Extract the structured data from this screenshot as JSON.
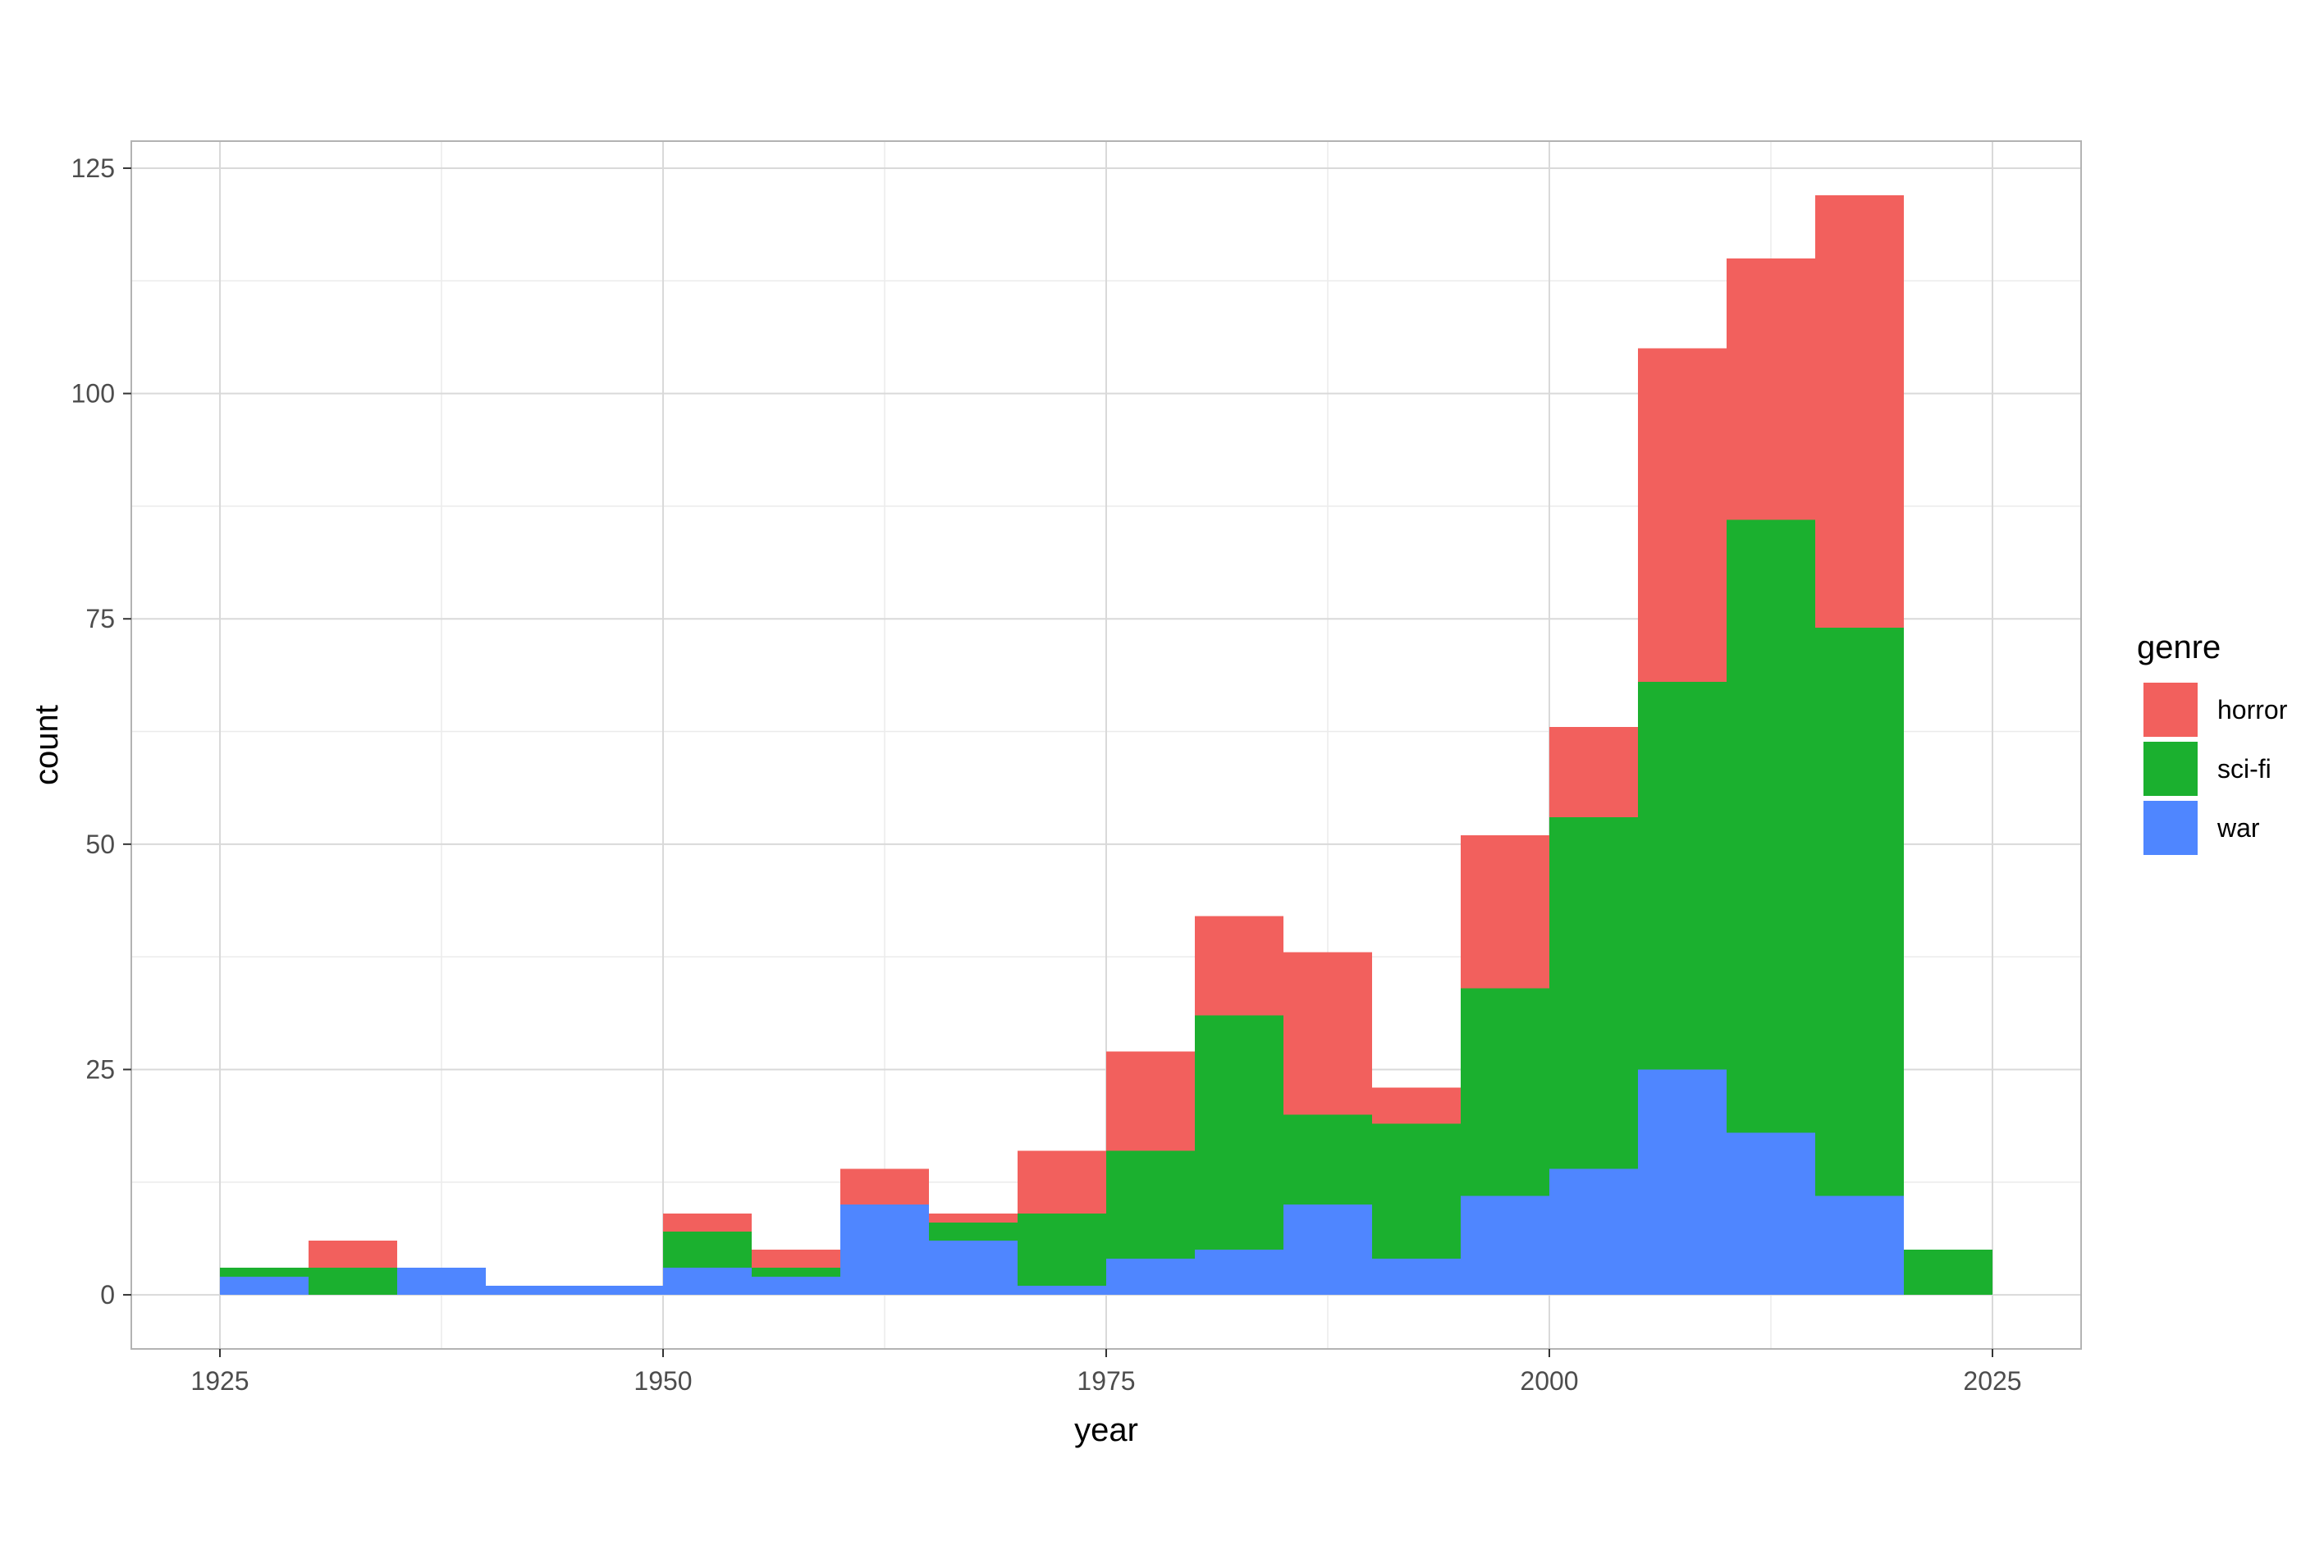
{
  "chart_data": {
    "type": "bar",
    "stacked": true,
    "histogram": true,
    "xlabel": "year",
    "ylabel": "count",
    "xlim": [
      1920,
      2030
    ],
    "ylim": [
      -6,
      128
    ],
    "x_ticks": [
      1925,
      1950,
      1975,
      2000,
      2025
    ],
    "y_ticks": [
      0,
      25,
      50,
      75,
      100,
      125
    ],
    "grid": true,
    "legend": {
      "title": "genre",
      "position": "right"
    },
    "bins": [
      [
        1925,
        1930
      ],
      [
        1930,
        1935
      ],
      [
        1935,
        1940
      ],
      [
        1940,
        1945
      ],
      [
        1945,
        1950
      ],
      [
        1950,
        1955
      ],
      [
        1955,
        1960
      ],
      [
        1960,
        1965
      ],
      [
        1965,
        1970
      ],
      [
        1970,
        1975
      ],
      [
        1975,
        1980
      ],
      [
        1980,
        1985
      ],
      [
        1985,
        1990
      ],
      [
        1990,
        1995
      ],
      [
        1995,
        2000
      ],
      [
        2000,
        2005
      ],
      [
        2005,
        2010
      ],
      [
        2010,
        2015
      ],
      [
        2015,
        2020
      ],
      [
        2020,
        2025
      ]
    ],
    "series": [
      {
        "name": "war",
        "color": "#4f86ff",
        "values": [
          2,
          0,
          3,
          1,
          1,
          3,
          2,
          10,
          6,
          1,
          4,
          5,
          10,
          4,
          11,
          14,
          25,
          18,
          11,
          0
        ]
      },
      {
        "name": "sci-fi",
        "color": "#1bb02f",
        "values": [
          1,
          3,
          0,
          0,
          0,
          4,
          1,
          0,
          2,
          8,
          12,
          26,
          10,
          15,
          23,
          39,
          43,
          68,
          63,
          5
        ]
      },
      {
        "name": "horror",
        "color": "#f2605d",
        "values": [
          0,
          3,
          0,
          0,
          0,
          2,
          2,
          4,
          1,
          7,
          11,
          11,
          18,
          4,
          17,
          10,
          37,
          29,
          48,
          0
        ]
      }
    ],
    "legend_order": [
      "horror",
      "sci-fi",
      "war"
    ]
  }
}
